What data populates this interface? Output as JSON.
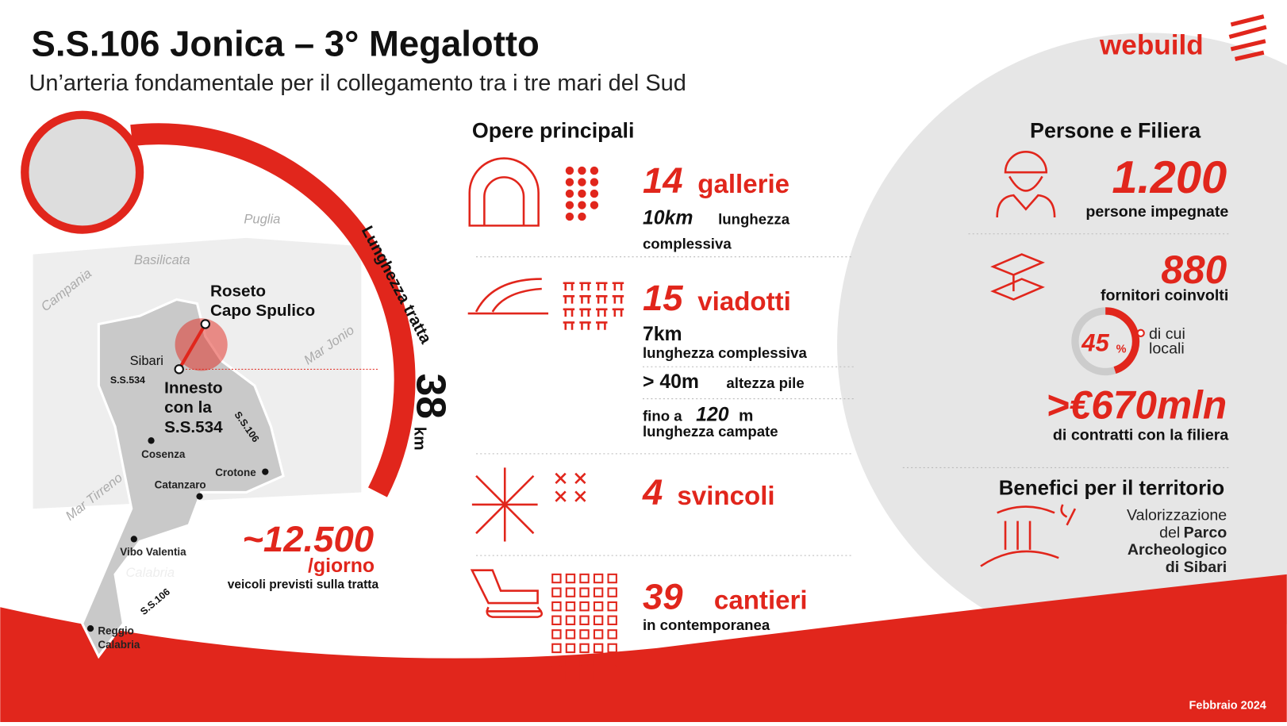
{
  "header": {
    "title": "S.S.106 Jonica – 3° Megalotto",
    "subtitle": "Un’arteria fondamentale per il collegamento tra i tre mari del Sud",
    "logo": "webuild"
  },
  "map": {
    "regions": [
      "Puglia",
      "Basilicata",
      "Campania",
      "Calabria"
    ],
    "seas": [
      "Mar Jonio",
      "Mar Tirreno"
    ],
    "roads": [
      "S.S.534",
      "S.S.106",
      "S.S.106"
    ],
    "start": [
      "Roseto",
      "Capo Spulico"
    ],
    "end": [
      "Innesto",
      "con la",
      "S.S.534"
    ],
    "cities": [
      "Sibari",
      "Cosenza",
      "Crotone",
      "Catanzaro",
      "Vibo Valentia",
      "Reggio",
      "Calabria"
    ]
  },
  "length": {
    "label": "Lunghezza tratta",
    "value": 38,
    "unit": "km"
  },
  "traffic": {
    "value": "~12.500",
    "unit": "/giorno",
    "caption": "veicoli previsti sulla tratta"
  },
  "works": {
    "title": "Opere principali",
    "gallerie": {
      "count": 14,
      "name": "gallerie",
      "length": "10km",
      "length_label": "lunghezza",
      "length_label2": "complessiva"
    },
    "viadotti": {
      "count": 15,
      "name": "viadotti",
      "length": "7km",
      "length_label": "lunghezza complessiva",
      "height": "> 40m",
      "height_label": "altezza pile",
      "span_prefix": "fino a",
      "span": "120",
      "span_unit": "m",
      "span_label": "lunghezza campate"
    },
    "svincoli": {
      "count": 4,
      "name": "svincoli"
    },
    "cantieri": {
      "count": 39,
      "name": "cantieri",
      "note": "in contemporanea"
    }
  },
  "people": {
    "title": "Persone e Filiera",
    "workers": "1.200",
    "workers_label": "persone impegnate",
    "suppliers": "880",
    "suppliers_label": "fornitori coinvolti",
    "local_share": 45,
    "local_unit": "%",
    "local_label1": "di cui",
    "local_label2": "locali",
    "contracts": ">€670mln",
    "contracts_label": "di contratti con la filiera"
  },
  "benefits": {
    "title": "Benefici per il territorio",
    "line1": "Valorizzazione",
    "line2a": "del",
    "line2b": "Parco",
    "line3": "Archeologico",
    "line4": "di Sibari"
  },
  "footer": {
    "date": "Febbraio 2024"
  }
}
